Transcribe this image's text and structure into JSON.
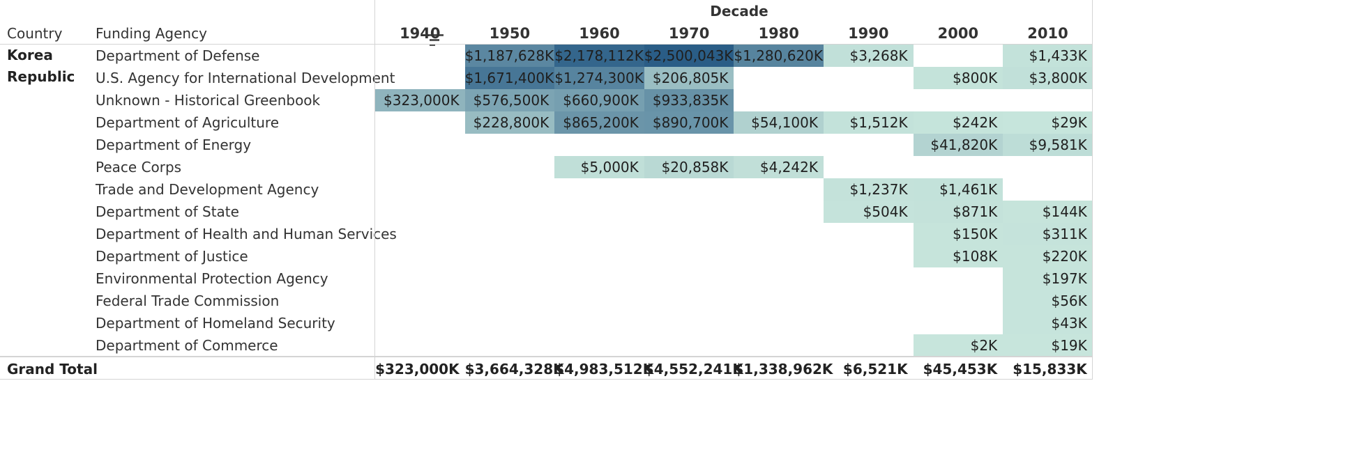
{
  "header": {
    "country_label": "Country",
    "agency_label": "Funding Agency",
    "sort_icon": "sort-descending-icon"
  },
  "decade_header": {
    "title": "Decade"
  },
  "decades": [
    "1940",
    "1950",
    "1960",
    "1970",
    "1980",
    "1990",
    "2000",
    "2010"
  ],
  "country": "Korea\nRepublic",
  "grand_total_label": "Grand Total",
  "colors": {
    "scale_low": "#c7e5dc",
    "scale_high": "#2a5d86",
    "text_dark": "#1f1f1f",
    "divider": "#d4d4d4"
  },
  "chart_data": {
    "type": "table",
    "title": "",
    "column_header": "Decade",
    "row_headers": [
      "Country",
      "Funding Agency"
    ],
    "columns": [
      "1940",
      "1950",
      "1960",
      "1970",
      "1980",
      "1990",
      "2000",
      "2010"
    ],
    "color_scale_max": 2500043,
    "rows": [
      {
        "agency": "Department of Defense",
        "values": [
          null,
          1187628,
          2178112,
          2500043,
          1280620,
          3268,
          null,
          1433
        ],
        "labels": [
          "",
          "$1,187,628K",
          "$2,178,112K",
          "$2,500,043K",
          "$1,280,620K",
          "$3,268K",
          "",
          "$1,433K"
        ]
      },
      {
        "agency": "U.S. Agency for International Development",
        "values": [
          null,
          1671400,
          1274300,
          206805,
          null,
          null,
          800,
          3800
        ],
        "labels": [
          "",
          "$1,671,400K",
          "$1,274,300K",
          "$206,805K",
          "",
          "",
          "$800K",
          "$3,800K"
        ]
      },
      {
        "agency": "Unknown - Historical Greenbook",
        "values": [
          323000,
          576500,
          660900,
          933835,
          null,
          null,
          null,
          null
        ],
        "labels": [
          "$323,000K",
          "$576,500K",
          "$660,900K",
          "$933,835K",
          "",
          "",
          "",
          ""
        ]
      },
      {
        "agency": "Department of Agriculture",
        "values": [
          null,
          228800,
          865200,
          890700,
          54100,
          1512,
          242,
          29
        ],
        "labels": [
          "",
          "$228,800K",
          "$865,200K",
          "$890,700K",
          "$54,100K",
          "$1,512K",
          "$242K",
          "$29K"
        ]
      },
      {
        "agency": "Department of Energy",
        "values": [
          null,
          null,
          null,
          null,
          null,
          null,
          41820,
          9581
        ],
        "labels": [
          "",
          "",
          "",
          "",
          "",
          "",
          "$41,820K",
          "$9,581K"
        ]
      },
      {
        "agency": "Peace Corps",
        "values": [
          null,
          null,
          5000,
          20858,
          4242,
          null,
          null,
          null
        ],
        "labels": [
          "",
          "",
          "$5,000K",
          "$20,858K",
          "$4,242K",
          "",
          "",
          ""
        ]
      },
      {
        "agency": "Trade and Development Agency",
        "values": [
          null,
          null,
          null,
          null,
          null,
          1237,
          1461,
          null
        ],
        "labels": [
          "",
          "",
          "",
          "",
          "",
          "$1,237K",
          "$1,461K",
          ""
        ]
      },
      {
        "agency": "Department of State",
        "values": [
          null,
          null,
          null,
          null,
          null,
          504,
          871,
          144
        ],
        "labels": [
          "",
          "",
          "",
          "",
          "",
          "$504K",
          "$871K",
          "$144K"
        ]
      },
      {
        "agency": "Department of Health and Human Services",
        "values": [
          null,
          null,
          null,
          null,
          null,
          null,
          150,
          311
        ],
        "labels": [
          "",
          "",
          "",
          "",
          "",
          "",
          "$150K",
          "$311K"
        ]
      },
      {
        "agency": "Department of Justice",
        "values": [
          null,
          null,
          null,
          null,
          null,
          null,
          108,
          220
        ],
        "labels": [
          "",
          "",
          "",
          "",
          "",
          "",
          "$108K",
          "$220K"
        ]
      },
      {
        "agency": "Environmental Protection Agency",
        "values": [
          null,
          null,
          null,
          null,
          null,
          null,
          null,
          197
        ],
        "labels": [
          "",
          "",
          "",
          "",
          "",
          "",
          "",
          "$197K"
        ]
      },
      {
        "agency": "Federal Trade Commission",
        "values": [
          null,
          null,
          null,
          null,
          null,
          null,
          null,
          56
        ],
        "labels": [
          "",
          "",
          "",
          "",
          "",
          "",
          "",
          "$56K"
        ]
      },
      {
        "agency": "Department of Homeland Security",
        "values": [
          null,
          null,
          null,
          null,
          null,
          null,
          null,
          43
        ],
        "labels": [
          "",
          "",
          "",
          "",
          "",
          "",
          "",
          "$43K"
        ]
      },
      {
        "agency": "Department of Commerce",
        "values": [
          null,
          null,
          null,
          null,
          null,
          null,
          2,
          19
        ],
        "labels": [
          "",
          "",
          "",
          "",
          "",
          "",
          "$2K",
          "$19K"
        ]
      }
    ],
    "grand_total": {
      "values": [
        323000,
        3664328,
        4983512,
        4552241,
        1338962,
        6521,
        45453,
        15833
      ],
      "labels": [
        "$323,000K",
        "$3,664,328K",
        "$4,983,512K",
        "$4,552,241K",
        "$1,338,962K",
        "$6,521K",
        "$45,453K",
        "$15,833K"
      ]
    }
  }
}
